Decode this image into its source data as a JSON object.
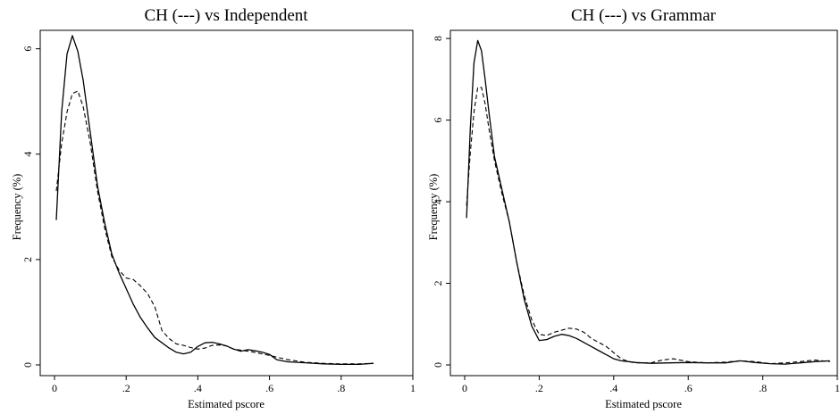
{
  "chart_data": [
    {
      "type": "line",
      "title": "CH (---) vs Independent",
      "xlabel": "Estimated pscore",
      "ylabel": "Frequency (%)",
      "xlim": [
        0,
        1
      ],
      "ylim": [
        0,
        6.35
      ],
      "xticks": [
        0,
        0.2,
        0.4,
        0.6,
        0.8,
        1
      ],
      "xtick_labels": [
        "0",
        ".2",
        ".4",
        ".6",
        ".8",
        "1"
      ],
      "yticks": [
        0,
        2,
        4,
        6
      ],
      "ytick_labels": [
        "0",
        "2",
        "4",
        "6"
      ],
      "grid": false,
      "legend": "none",
      "series": [
        {
          "style": "solid",
          "x": [
            0.005,
            0.02,
            0.035,
            0.05,
            0.065,
            0.08,
            0.1,
            0.12,
            0.14,
            0.16,
            0.18,
            0.2,
            0.22,
            0.24,
            0.26,
            0.28,
            0.3,
            0.32,
            0.34,
            0.36,
            0.38,
            0.4,
            0.42,
            0.44,
            0.46,
            0.48,
            0.5,
            0.52,
            0.54,
            0.56,
            0.58,
            0.6,
            0.62,
            0.65,
            0.7,
            0.75,
            0.8,
            0.85,
            0.89
          ],
          "y": [
            2.75,
            4.8,
            5.9,
            6.25,
            5.95,
            5.4,
            4.4,
            3.4,
            2.7,
            2.1,
            1.75,
            1.45,
            1.15,
            0.9,
            0.7,
            0.52,
            0.42,
            0.32,
            0.24,
            0.21,
            0.24,
            0.35,
            0.42,
            0.43,
            0.4,
            0.36,
            0.3,
            0.26,
            0.29,
            0.27,
            0.24,
            0.2,
            0.1,
            0.06,
            0.04,
            0.02,
            0.01,
            0.01,
            0.03
          ]
        },
        {
          "style": "dashed",
          "x": [
            0.005,
            0.02,
            0.035,
            0.05,
            0.065,
            0.08,
            0.1,
            0.12,
            0.14,
            0.16,
            0.18,
            0.2,
            0.22,
            0.24,
            0.26,
            0.28,
            0.3,
            0.32,
            0.34,
            0.36,
            0.38,
            0.4,
            0.42,
            0.44,
            0.46,
            0.48,
            0.5,
            0.55,
            0.6,
            0.65,
            0.7,
            0.75,
            0.8,
            0.85,
            0.89
          ],
          "y": [
            3.3,
            4.2,
            4.8,
            5.15,
            5.2,
            4.9,
            4.2,
            3.3,
            2.6,
            2.05,
            1.8,
            1.65,
            1.62,
            1.5,
            1.35,
            1.1,
            0.65,
            0.5,
            0.4,
            0.37,
            0.33,
            0.3,
            0.32,
            0.37,
            0.38,
            0.36,
            0.3,
            0.25,
            0.18,
            0.1,
            0.05,
            0.03,
            0.02,
            0.02,
            0.03
          ]
        }
      ]
    },
    {
      "type": "line",
      "title": "CH (---) vs Grammar",
      "xlabel": "Estimated pscore",
      "ylabel": "Frequency (%)",
      "xlim": [
        0,
        1
      ],
      "ylim": [
        0,
        8.2
      ],
      "xticks": [
        0,
        0.2,
        0.4,
        0.6,
        0.8,
        1
      ],
      "xtick_labels": [
        "0",
        ".2",
        ".4",
        ".6",
        ".8",
        "1"
      ],
      "yticks": [
        0,
        2,
        4,
        6,
        8
      ],
      "ytick_labels": [
        "0",
        "2",
        "4",
        "6",
        "8"
      ],
      "grid": false,
      "legend": "none",
      "series": [
        {
          "style": "solid",
          "x": [
            0.005,
            0.015,
            0.025,
            0.035,
            0.045,
            0.055,
            0.065,
            0.08,
            0.1,
            0.12,
            0.14,
            0.16,
            0.18,
            0.2,
            0.22,
            0.24,
            0.26,
            0.28,
            0.3,
            0.32,
            0.34,
            0.36,
            0.38,
            0.4,
            0.42,
            0.44,
            0.46,
            0.5,
            0.55,
            0.6,
            0.65,
            0.7,
            0.74,
            0.78,
            0.82,
            0.86,
            0.9,
            0.94,
            0.98
          ],
          "y": [
            3.6,
            5.8,
            7.4,
            7.95,
            7.7,
            7.0,
            6.2,
            5.1,
            4.3,
            3.5,
            2.5,
            1.6,
            0.95,
            0.6,
            0.62,
            0.7,
            0.75,
            0.72,
            0.65,
            0.55,
            0.45,
            0.35,
            0.25,
            0.15,
            0.1,
            0.08,
            0.06,
            0.04,
            0.05,
            0.06,
            0.05,
            0.05,
            0.1,
            0.06,
            0.03,
            0.02,
            0.05,
            0.08,
            0.1
          ]
        },
        {
          "style": "dashed",
          "x": [
            0.005,
            0.015,
            0.025,
            0.035,
            0.045,
            0.055,
            0.065,
            0.08,
            0.1,
            0.12,
            0.14,
            0.16,
            0.18,
            0.2,
            0.22,
            0.24,
            0.26,
            0.28,
            0.3,
            0.32,
            0.34,
            0.36,
            0.38,
            0.4,
            0.42,
            0.44,
            0.46,
            0.5,
            0.53,
            0.56,
            0.6,
            0.65,
            0.7,
            0.74,
            0.78,
            0.82,
            0.86,
            0.9,
            0.94,
            0.98
          ],
          "y": [
            3.9,
            5.2,
            6.2,
            6.8,
            6.8,
            6.4,
            5.8,
            5.0,
            4.2,
            3.5,
            2.5,
            1.7,
            1.1,
            0.75,
            0.72,
            0.8,
            0.85,
            0.9,
            0.88,
            0.8,
            0.65,
            0.55,
            0.45,
            0.3,
            0.15,
            0.08,
            0.05,
            0.05,
            0.12,
            0.15,
            0.08,
            0.05,
            0.07,
            0.1,
            0.08,
            0.03,
            0.05,
            0.08,
            0.12,
            0.08
          ]
        }
      ]
    }
  ]
}
